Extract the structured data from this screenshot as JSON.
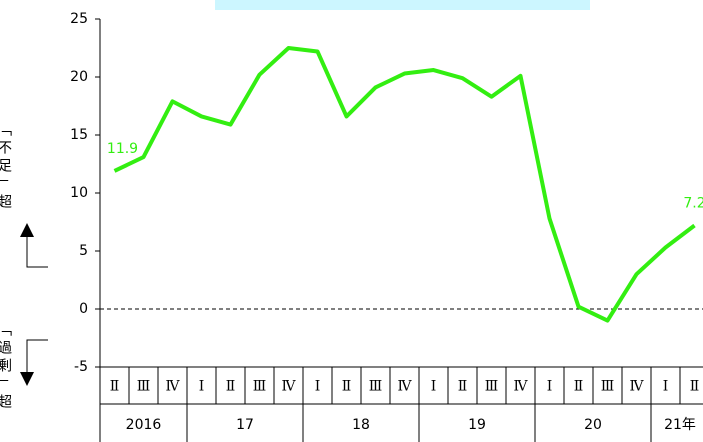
{
  "chart_data": {
    "type": "line",
    "side_labels": [
      "「不足」超",
      "「過剰」超"
    ],
    "categories": [
      "Ⅱ",
      "Ⅲ",
      "Ⅳ",
      "Ⅰ",
      "Ⅱ",
      "Ⅲ",
      "Ⅳ",
      "Ⅰ",
      "Ⅱ",
      "Ⅲ",
      "Ⅳ",
      "Ⅰ",
      "Ⅱ",
      "Ⅲ",
      "Ⅳ",
      "Ⅰ",
      "Ⅱ",
      "Ⅲ",
      "Ⅳ",
      "Ⅰ",
      "Ⅱ"
    ],
    "year_labels": [
      "2016",
      null,
      null,
      "17",
      null,
      null,
      null,
      "18",
      null,
      null,
      null,
      "19",
      null,
      null,
      null,
      "20",
      null,
      null,
      null,
      "21年",
      null
    ],
    "series": [
      {
        "color": "#33ee11",
        "values": [
          11.9,
          13.1,
          17.9,
          16.6,
          15.9,
          20.2,
          22.5,
          22.2,
          16.6,
          19.1,
          20.3,
          20.6,
          19.9,
          18.3,
          20.1,
          7.8,
          0.2,
          -1.0,
          3.0,
          5.3,
          7.2
        ],
        "value_labels": [
          "11.9",
          null,
          null,
          null,
          null,
          null,
          null,
          null,
          null,
          null,
          null,
          null,
          null,
          null,
          null,
          null,
          null,
          null,
          null,
          null,
          "7.2"
        ]
      }
    ],
    "ylim": [
      -5,
      25
    ],
    "yticks": [
      -5,
      0,
      5,
      10,
      15,
      20,
      25
    ],
    "zero_line": true
  }
}
